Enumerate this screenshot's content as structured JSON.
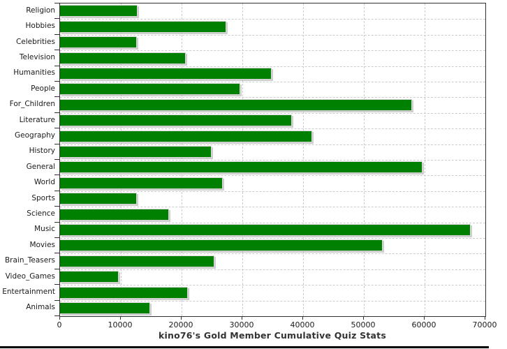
{
  "colors": {
    "bar": "#008000",
    "bar_border": "#d6d6d6",
    "bar_shadow": "rgba(165,165,165,0.55)",
    "grid": "#cccccc",
    "axis_frame": "#2f2f2f",
    "tick_text": "#1a1a1a",
    "title_text": "#333333",
    "bottom_rule": "#000000",
    "background": "#ffffff"
  },
  "chart_data": {
    "type": "bar",
    "orientation": "horizontal",
    "title": "kino76's Gold Member Cumulative Quiz Stats",
    "xlabel": "",
    "ylabel": "",
    "categories": [
      "Religion",
      "Hobbies",
      "Celebrities",
      "Television",
      "Humanities",
      "People",
      "For_Children",
      "Literature",
      "Geography",
      "History",
      "General",
      "World",
      "Sports",
      "Science",
      "Music",
      "Movies",
      "Brain_Teasers",
      "Video_Games",
      "Entertainment",
      "Animals"
    ],
    "values": [
      12800,
      27400,
      12600,
      20700,
      34800,
      29600,
      57900,
      38200,
      41500,
      24900,
      59600,
      26800,
      12600,
      17900,
      67600,
      53100,
      25400,
      9600,
      21000,
      14800
    ],
    "xlim": [
      0,
      70000
    ],
    "x_ticks": [
      0,
      10000,
      20000,
      30000,
      40000,
      50000,
      60000,
      70000
    ],
    "x_tick_labels": [
      "0",
      "10000",
      "20000",
      "30000",
      "40000",
      "50000",
      "60000",
      "70000"
    ],
    "grid": true,
    "grid_style": "dashed",
    "legend": false,
    "bar_color": "#008000",
    "title_position": "bottom"
  }
}
